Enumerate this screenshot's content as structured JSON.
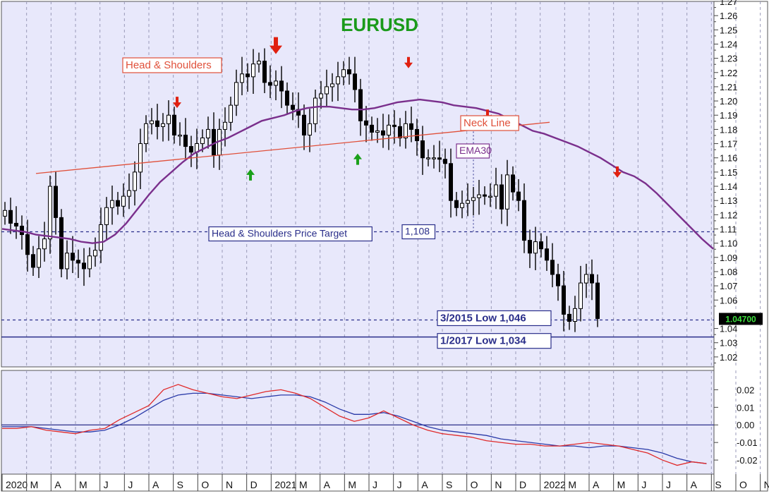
{
  "colors": {
    "plot_bg": "#e8e8fb",
    "axis_bg": "#ffffff",
    "grid": "#9a9ab8",
    "title": "#1a9a1a",
    "ema": "#7a2f8c",
    "neckline": "#e0503a",
    "level_line": "#2a2e8a",
    "arrow_red": "#e02010",
    "arrow_green": "#1aa01a",
    "macd": "#2a3aa8",
    "signal": "#e02a2a",
    "candle_up": "#ffffff",
    "candle_down": "#000000",
    "price_badge_bg": "#000000",
    "price_badge_text": "#3ee03e"
  },
  "chart_data": [
    {
      "type": "candlestick",
      "title": "EURUSD",
      "ylim": [
        1.013,
        1.27
      ],
      "y_ticks": [
        "1.02",
        "1.03",
        "1.04",
        "1.06",
        "1.07",
        "1.08",
        "1.09",
        "1.10",
        "1.11",
        "1.12",
        "1.13",
        "1.14",
        "1.15",
        "1.16",
        "1.17",
        "1.18",
        "1.19",
        "1.20",
        "1.21",
        "1.22",
        "1.23",
        "1.24",
        "1.25",
        "1.26",
        "1.27"
      ],
      "x_ticks": [
        "2020",
        "M",
        "A",
        "M",
        "J",
        "J",
        "A",
        "S",
        "O",
        "N",
        "D",
        "2021",
        "M",
        "A",
        "M",
        "J",
        "J",
        "A",
        "S",
        "O",
        "N",
        "D",
        "2022",
        "M",
        "A",
        "M",
        "J",
        "J",
        "A",
        "S",
        "O",
        "N"
      ],
      "last_price_label": "1.04700",
      "last_price": 1.047,
      "close_series": [
        1.123,
        1.114,
        1.112,
        1.106,
        1.092,
        1.083,
        1.096,
        1.103,
        1.14,
        1.118,
        1.082,
        1.093,
        1.088,
        1.086,
        1.082,
        1.091,
        1.095,
        1.113,
        1.125,
        1.13,
        1.126,
        1.133,
        1.137,
        1.15,
        1.17,
        1.184,
        1.186,
        1.182,
        1.184,
        1.19,
        1.176,
        1.176,
        1.168,
        1.164,
        1.17,
        1.174,
        1.18,
        1.162,
        1.18,
        1.185,
        1.197,
        1.213,
        1.219,
        1.217,
        1.226,
        1.228,
        1.213,
        1.211,
        1.214,
        1.207,
        1.197,
        1.194,
        1.19,
        1.176,
        1.184,
        1.202,
        1.205,
        1.21,
        1.212,
        1.217,
        1.222,
        1.219,
        1.208,
        1.186,
        1.183,
        1.178,
        1.179,
        1.176,
        1.183,
        1.182,
        1.174,
        1.184,
        1.18,
        1.172,
        1.16,
        1.16,
        1.16,
        1.159,
        1.156,
        1.13,
        1.125,
        1.128,
        1.13,
        1.132,
        1.134,
        1.133,
        1.133,
        1.141,
        1.124,
        1.148,
        1.136,
        1.13,
        1.102,
        1.093,
        1.101,
        1.096,
        1.088,
        1.078,
        1.07,
        1.05,
        1.045,
        1.054,
        1.072,
        1.078,
        1.072,
        1.047
      ],
      "ema30": [
        1.11,
        1.109,
        1.108,
        1.106,
        1.105,
        1.104,
        1.103,
        1.101,
        1.1,
        1.101,
        1.106,
        1.114,
        1.124,
        1.134,
        1.143,
        1.15,
        1.157,
        1.163,
        1.167,
        1.171,
        1.174,
        1.178,
        1.182,
        1.186,
        1.188,
        1.19,
        1.193,
        1.195,
        1.196,
        1.196,
        1.195,
        1.194,
        1.194,
        1.195,
        1.197,
        1.199,
        1.2,
        1.201,
        1.2,
        1.199,
        1.197,
        1.196,
        1.195,
        1.193,
        1.191,
        1.187,
        1.183,
        1.179,
        1.177,
        1.174,
        1.171,
        1.168,
        1.164,
        1.16,
        1.155,
        1.15,
        1.147,
        1.142,
        1.135,
        1.127,
        1.119,
        1.111,
        1.103,
        1.096
      ],
      "events": [
        {
          "kind": "down",
          "x": 2020.5962,
          "y": 1.195
        },
        {
          "kind": "up",
          "x": 2020.8462,
          "y": 1.152
        },
        {
          "kind": "down_big",
          "x": 2020.9327,
          "y": 1.233
        },
        {
          "kind": "up",
          "x": 2021.2115,
          "y": 1.163
        },
        {
          "kind": "down",
          "x": 2021.3846,
          "y": 1.223
        },
        {
          "kind": "down",
          "x": 2021.6538,
          "y": 1.186
        },
        {
          "kind": "down",
          "x": 2022.0962,
          "y": 1.146
        }
      ],
      "neckline": {
        "x": [
          2020.1154,
          2021.8654
        ],
        "y": [
          1.149,
          1.185
        ]
      },
      "target_drop": {
        "x": 2021.6058,
        "y_top": 1.181,
        "y_bottom": 1.108
      },
      "levels": [
        {
          "label": "Head & Shoulders Price Target",
          "value_label": "1,108",
          "y": 1.108,
          "style": "dashed"
        },
        {
          "label": "3/2015 Low  1,046",
          "y": 1.046,
          "style": "dashed"
        },
        {
          "label": "1/2017 Low  1,034",
          "y": 1.034,
          "style": "solid"
        }
      ],
      "annotations": [
        {
          "text": "Head & Shoulders",
          "x": 2020.3,
          "y": 1.228
        },
        {
          "text": "Neck Line",
          "x": 2021.89,
          "y": 1.181
        },
        {
          "text": "EMA30",
          "x": 2021.8,
          "y": 1.166
        }
      ]
    },
    {
      "type": "line",
      "ylim": [
        -0.028,
        0.031
      ],
      "y_ticks": [
        "0.02",
        "0.01",
        "0.00",
        "-0.01",
        "-0.02"
      ],
      "series": [
        {
          "key": "macd",
          "x": [
            2020.0,
            2020.05,
            2020.1,
            2020.15,
            2020.2,
            2020.25,
            2020.3,
            2020.35,
            2020.4,
            2020.45,
            2020.5,
            2020.55,
            2020.6,
            2020.65,
            2020.7,
            2020.75,
            2020.8,
            2020.85,
            2020.9,
            2020.95,
            2021.0,
            2021.05,
            2021.1,
            2021.15,
            2021.2,
            2021.25,
            2021.3,
            2021.35,
            2021.4,
            2021.45,
            2021.5,
            2021.55,
            2021.6,
            2021.65,
            2021.7,
            2021.75,
            2021.8,
            2021.85,
            2021.9,
            2021.95,
            2022.0,
            2022.05,
            2022.1,
            2022.15,
            2022.2,
            2022.25,
            2022.3,
            2022.35,
            2022.4
          ],
          "y": [
            -0.001,
            -0.001,
            -0.001,
            -0.002,
            -0.003,
            -0.004,
            -0.004,
            -0.003,
            0.0,
            0.004,
            0.009,
            0.014,
            0.017,
            0.018,
            0.018,
            0.017,
            0.016,
            0.015,
            0.016,
            0.017,
            0.017,
            0.016,
            0.013,
            0.009,
            0.006,
            0.006,
            0.007,
            0.005,
            0.002,
            -0.001,
            -0.003,
            -0.004,
            -0.005,
            -0.006,
            -0.008,
            -0.009,
            -0.01,
            -0.011,
            -0.012,
            -0.012,
            -0.013,
            -0.012,
            -0.012,
            -0.013,
            -0.014,
            -0.016,
            -0.019,
            -0.021,
            -0.022
          ]
        },
        {
          "key": "signal",
          "x": [
            2020.0,
            2020.05,
            2020.1,
            2020.15,
            2020.2,
            2020.25,
            2020.3,
            2020.35,
            2020.4,
            2020.45,
            2020.5,
            2020.55,
            2020.6,
            2020.65,
            2020.7,
            2020.75,
            2020.8,
            2020.85,
            2020.9,
            2020.95,
            2021.0,
            2021.05,
            2021.1,
            2021.15,
            2021.2,
            2021.25,
            2021.3,
            2021.35,
            2021.4,
            2021.45,
            2021.5,
            2021.55,
            2021.6,
            2021.65,
            2021.7,
            2021.75,
            2021.8,
            2021.85,
            2021.9,
            2021.95,
            2022.0,
            2022.05,
            2022.1,
            2022.15,
            2022.2,
            2022.25,
            2022.3,
            2022.35,
            2022.4
          ],
          "y": [
            -0.002,
            -0.002,
            -0.001,
            -0.003,
            -0.004,
            -0.005,
            -0.003,
            -0.002,
            0.003,
            0.007,
            0.011,
            0.02,
            0.023,
            0.02,
            0.018,
            0.016,
            0.015,
            0.017,
            0.019,
            0.02,
            0.018,
            0.015,
            0.01,
            0.005,
            0.002,
            0.004,
            0.008,
            0.004,
            0.0,
            -0.003,
            -0.005,
            -0.006,
            -0.007,
            -0.009,
            -0.01,
            -0.011,
            -0.011,
            -0.012,
            -0.012,
            -0.011,
            -0.01,
            -0.011,
            -0.012,
            -0.014,
            -0.016,
            -0.02,
            -0.023,
            -0.021,
            -0.022
          ]
        }
      ],
      "zero_line": 0.0
    }
  ]
}
